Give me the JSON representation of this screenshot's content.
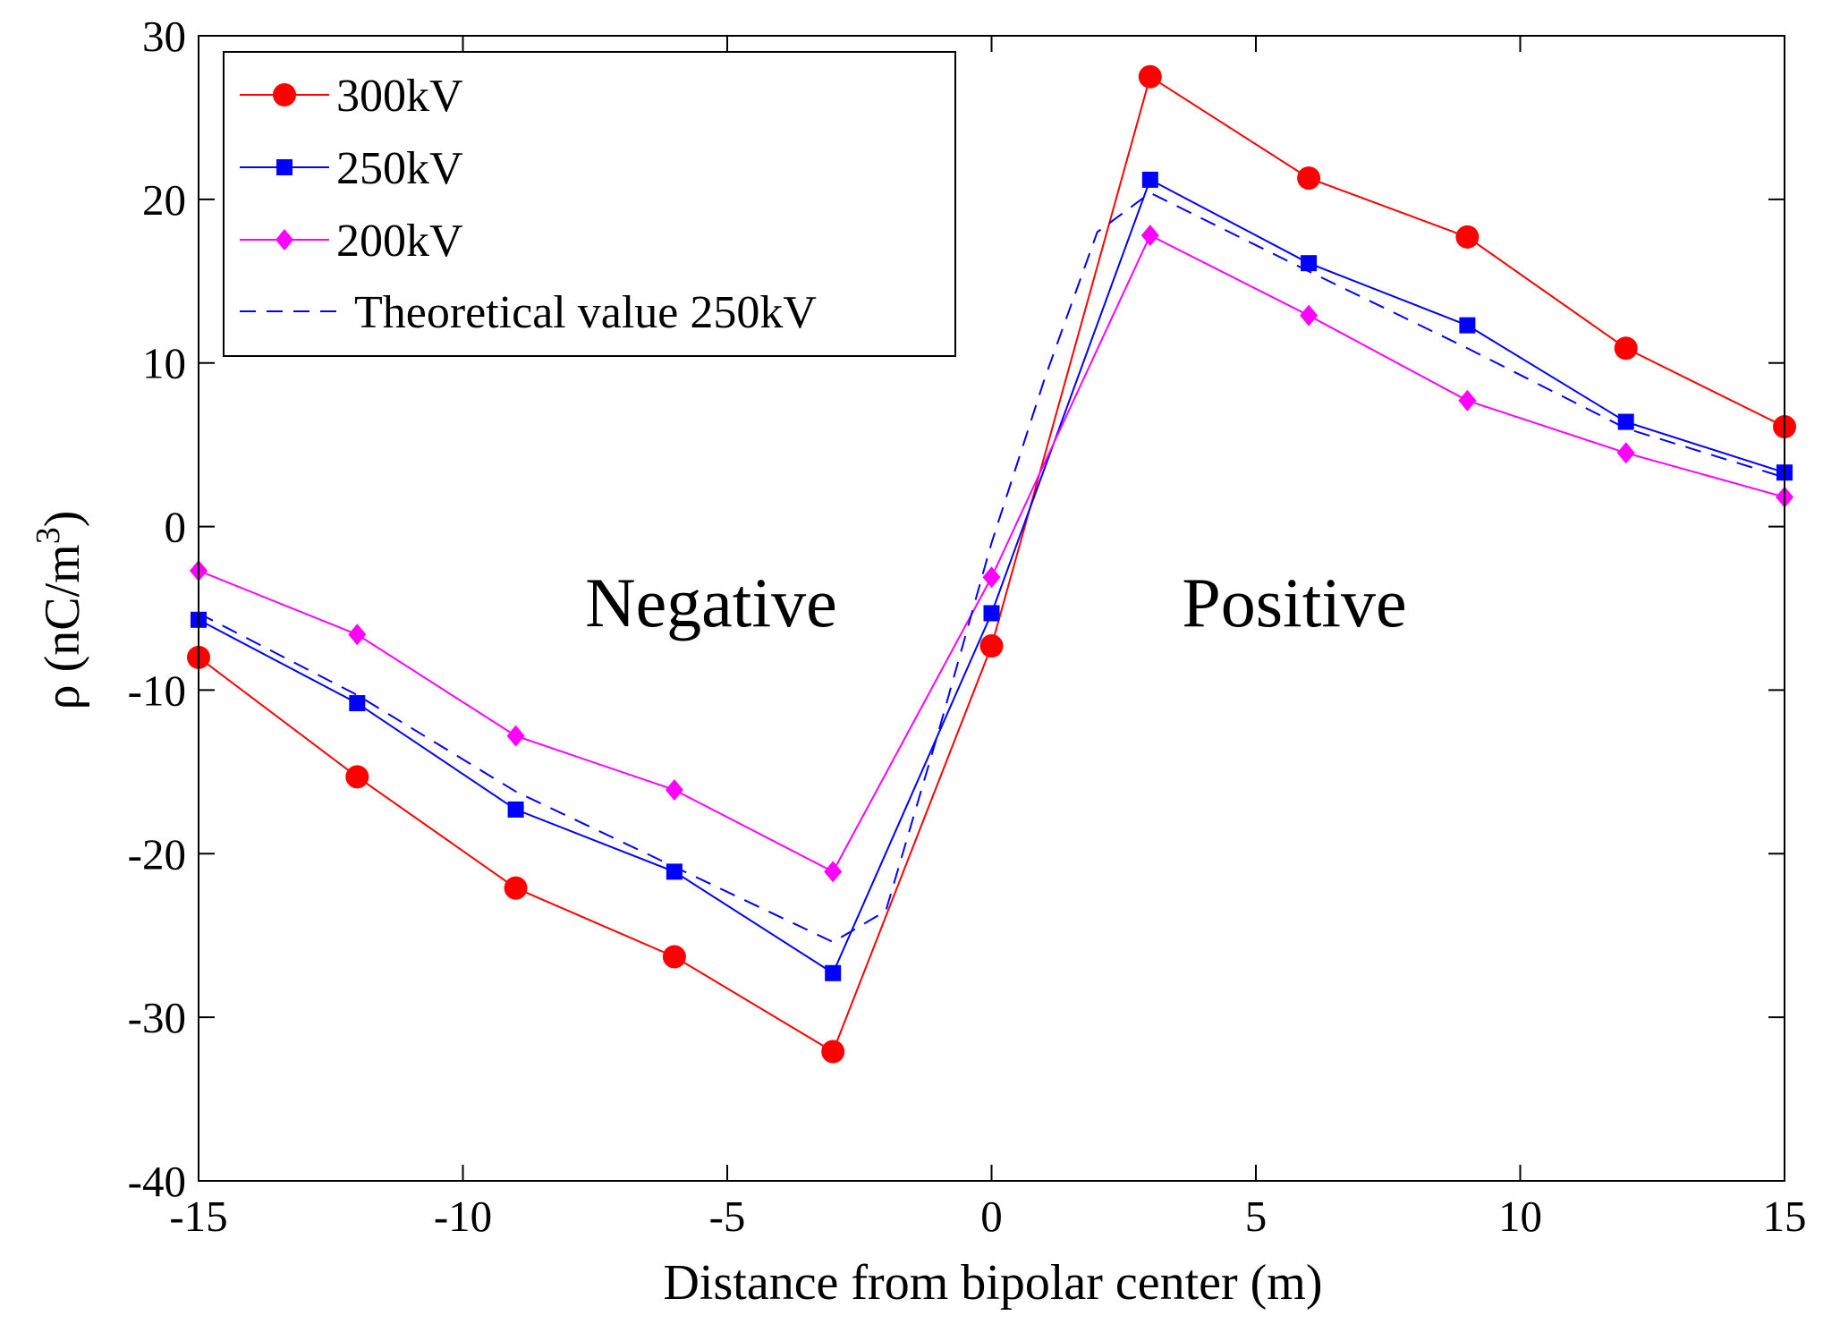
{
  "chart_data": {
    "type": "line",
    "title": "",
    "xlabel": "Distance from bipolar center (m)",
    "ylabel_main": "ρ (nC/m",
    "ylabel_sup": "3",
    "ylabel_close": ")",
    "xlim": [
      -15,
      15
    ],
    "ylim": [
      -40,
      30
    ],
    "xticks": [
      -15,
      -10,
      -5,
      0,
      5,
      10,
      15
    ],
    "yticks": [
      -40,
      -30,
      -20,
      -10,
      0,
      10,
      20,
      30
    ],
    "grid": false,
    "legend_position": "top-left",
    "annotations": [
      {
        "text": "Negative",
        "x": -5.4,
        "y": -5
      },
      {
        "text": "Positive",
        "x": 5.6,
        "y": -5
      }
    ],
    "series": [
      {
        "name": "300kV",
        "color": "#ff0000",
        "marker": "circle",
        "line": "solid",
        "x": [
          -15,
          -12,
          -9,
          -6,
          -3,
          0,
          3,
          6,
          9,
          12,
          15
        ],
        "y": [
          -8.0,
          -15.3,
          -22.1,
          -26.3,
          -32.1,
          -7.3,
          27.5,
          21.3,
          17.7,
          10.9,
          6.1
        ]
      },
      {
        "name": "250kV",
        "color": "#0000ff",
        "marker": "square",
        "line": "solid",
        "x": [
          -15,
          -12,
          -9,
          -6,
          -3,
          0,
          3,
          6,
          9,
          12,
          15
        ],
        "y": [
          -5.7,
          -10.8,
          -17.3,
          -21.1,
          -27.3,
          -5.3,
          21.2,
          16.1,
          12.3,
          6.4,
          3.3
        ]
      },
      {
        "name": "200kV",
        "color": "#ff00ff",
        "marker": "diamond",
        "line": "solid",
        "x": [
          -15,
          -12,
          -9,
          -6,
          -3,
          0,
          3,
          6,
          9,
          12,
          15
        ],
        "y": [
          -2.7,
          -6.6,
          -12.8,
          -16.1,
          -21.1,
          -3.1,
          17.8,
          12.9,
          7.7,
          4.5,
          1.8
        ]
      },
      {
        "name": "Theoretical value 250kV",
        "color": "#0000ff",
        "marker": "none",
        "line": "dashed",
        "x": [
          -15,
          -12,
          -9,
          -6,
          -3,
          -2,
          -1,
          0,
          1,
          2,
          3,
          6,
          9,
          12,
          15
        ],
        "y": [
          -5.3,
          -10.3,
          -16.2,
          -20.8,
          -25.4,
          -23.5,
          -12.5,
          -1.0,
          9.0,
          18.0,
          20.4,
          15.6,
          10.9,
          6.0,
          3.0
        ]
      }
    ]
  }
}
